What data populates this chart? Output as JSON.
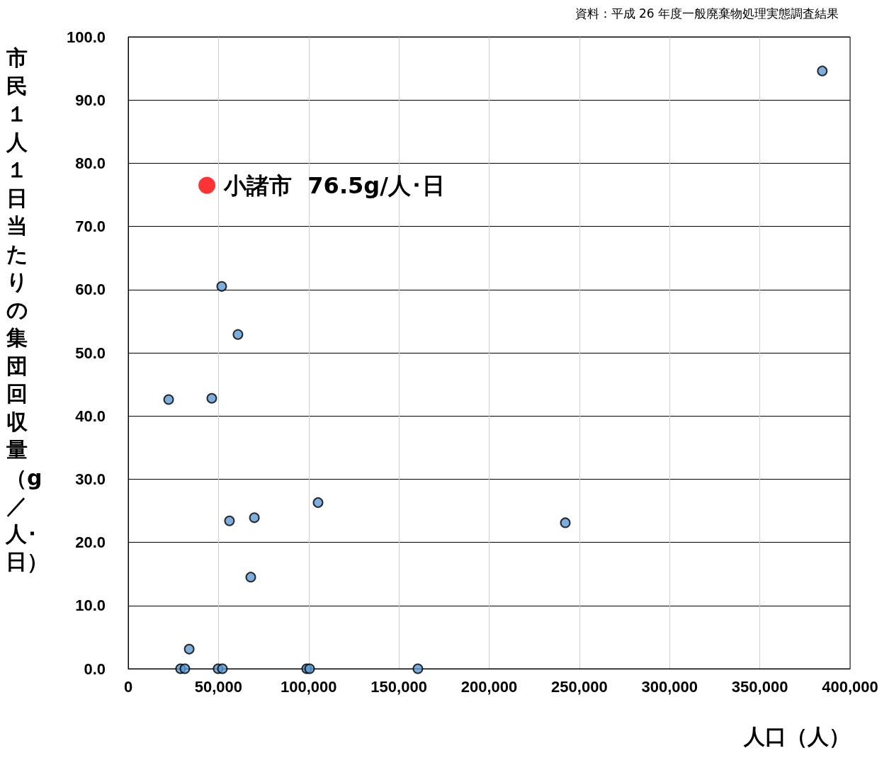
{
  "chart_data": {
    "type": "scatter",
    "xlabel": "人口（人）",
    "ylabel": "市民１人１日当たりの集団回収量（g／人･日）",
    "annotations": [
      "資料：平成 26 年度一般廃棄物処理実態調査結果",
      {
        "text": "小諸市  76.5g/人･日",
        "x": 43600,
        "y": 76.5
      }
    ],
    "series": [
      {
        "color": "#5b9bd5",
        "x": [
          384600,
          22400,
          46300,
          51800,
          60800,
          56100,
          69900,
          67900,
          105200,
          242200,
          33800,
          29000,
          31400,
          49800,
          52200,
          98900,
          100500,
          160500
        ],
        "values": [
          94.6,
          42.6,
          42.8,
          60.5,
          52.9,
          23.4,
          23.9,
          14.5,
          26.3,
          23.1,
          3.1,
          0,
          0,
          0,
          0,
          0,
          0,
          0
        ]
      },
      {
        "color": "#ff0000",
        "x": [
          43600
        ],
        "values": [
          76.5
        ]
      }
    ],
    "xlim": [
      0,
      400000
    ],
    "ylim": [
      0,
      100
    ],
    "xticks": [
      0,
      {
        "value": 50000,
        "label": "50,000"
      },
      {
        "value": 100000,
        "label": "100,000"
      },
      {
        "value": 150000,
        "label": "150,000"
      },
      {
        "value": 200000,
        "label": "200,000"
      },
      {
        "value": 250000,
        "label": "250,000"
      },
      {
        "value": 300000,
        "label": "300,000"
      },
      {
        "value": 350000,
        "label": "350,000"
      },
      {
        "value": 400000,
        "label": "400,000"
      }
    ],
    "yticks": [
      {
        "value": 0,
        "label": "0.0"
      },
      {
        "value": 10,
        "label": "10.0"
      },
      {
        "value": 20,
        "label": "20.0"
      },
      {
        "value": 30,
        "label": "30.0"
      },
      {
        "value": 40,
        "label": "40.0"
      },
      {
        "value": 50,
        "label": "50.0"
      },
      {
        "value": 60,
        "label": "60.0"
      },
      {
        "value": 70,
        "label": "70.0"
      },
      {
        "value": 80,
        "label": "80.0"
      },
      {
        "value": 90,
        "label": "90.0"
      },
      {
        "value": 100,
        "label": "100.0"
      }
    ],
    "grid": true,
    "marker": "circle"
  }
}
